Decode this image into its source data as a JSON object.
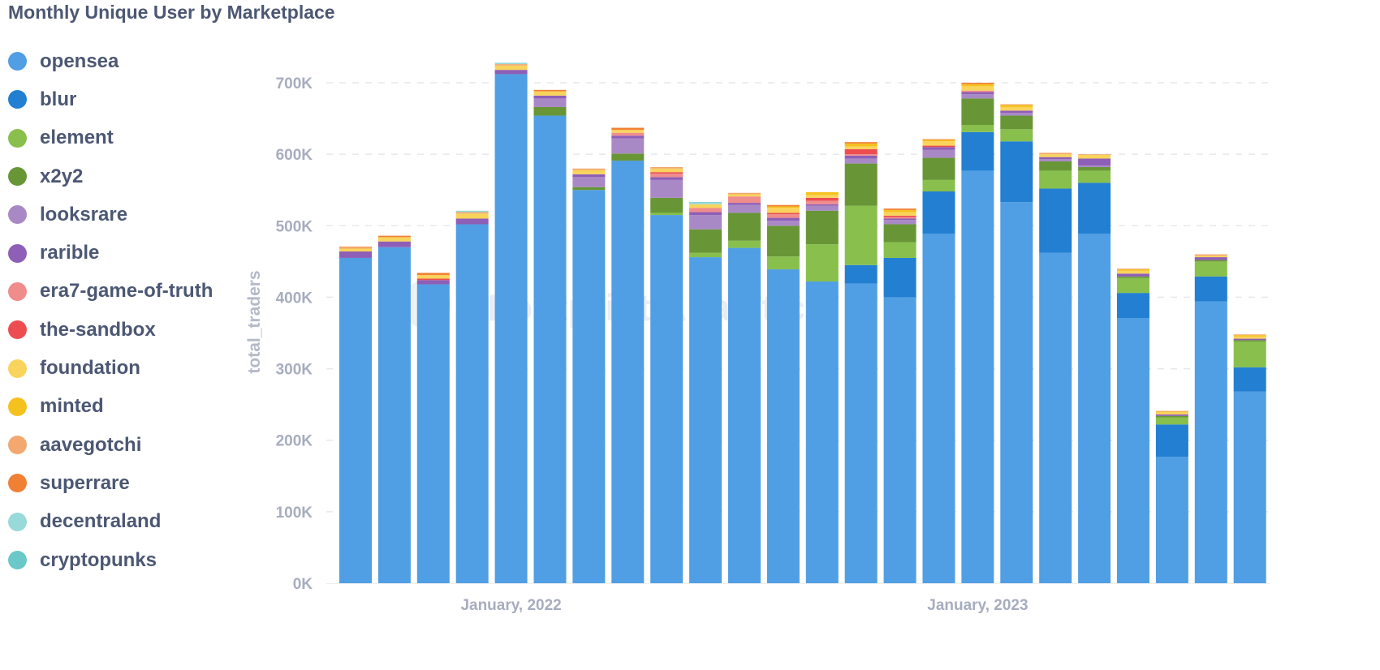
{
  "chart_data": {
    "type": "bar",
    "stacked": true,
    "title": "Monthly Unique User by Marketplace",
    "ylabel": "total_traders",
    "xlabel": "",
    "ylim": [
      0,
      740000
    ],
    "y_ticks": [
      "0K",
      "100K",
      "200K",
      "300K",
      "400K",
      "500K",
      "600K",
      "700K"
    ],
    "y_tick_values": [
      0,
      100000,
      200000,
      300000,
      400000,
      500000,
      600000,
      700000
    ],
    "x_tick_labels": [
      {
        "label": "January, 2022",
        "category": "2022-01"
      },
      {
        "label": "January, 2023",
        "category": "2023-01"
      }
    ],
    "grid": true,
    "legend_placement": "left",
    "watermark": "Footprint Analytics",
    "categories": [
      "2021-09",
      "2021-10",
      "2021-11",
      "2021-12",
      "2022-01",
      "2022-02",
      "2022-03",
      "2022-04",
      "2022-05",
      "2022-06",
      "2022-07",
      "2022-08",
      "2022-09",
      "2022-10",
      "2022-11",
      "2022-12",
      "2023-01",
      "2023-02",
      "2023-03",
      "2023-04",
      "2023-05",
      "2023-06",
      "2023-07",
      "2023-08"
    ],
    "series": [
      {
        "name": "opensea",
        "color": "#509ee3",
        "values": [
          455000,
          470000,
          418000,
          502000,
          712000,
          654000,
          550000,
          591000,
          515000,
          456000,
          469000,
          439000,
          422000,
          419000,
          400000,
          489000,
          577000,
          533000,
          462000,
          489000,
          371000,
          177000,
          394000,
          268000
        ]
      },
      {
        "name": "blur",
        "color": "#227fd2",
        "values": [
          0,
          0,
          0,
          0,
          0,
          0,
          0,
          0,
          0,
          0,
          0,
          0,
          0,
          26000,
          55000,
          59000,
          54000,
          85000,
          90000,
          71000,
          35000,
          45000,
          35000,
          34000
        ]
      },
      {
        "name": "element",
        "color": "#88bf4d",
        "values": [
          0,
          0,
          0,
          0,
          0,
          0,
          0,
          0,
          3000,
          6000,
          10000,
          18000,
          52000,
          83000,
          22000,
          16000,
          10000,
          17000,
          25000,
          17000,
          21000,
          10000,
          21000,
          36000
        ]
      },
      {
        "name": "x2y2",
        "color": "#689636",
        "values": [
          0,
          0,
          0,
          0,
          0,
          12000,
          4000,
          10000,
          21000,
          33000,
          39000,
          43000,
          47000,
          59000,
          25000,
          31000,
          37000,
          19000,
          13000,
          5000,
          2000,
          2000,
          2000,
          2000
        ]
      },
      {
        "name": "looksrare",
        "color": "#a989c5",
        "values": [
          0,
          0,
          0,
          0,
          0,
          12000,
          14000,
          21000,
          25000,
          20000,
          11000,
          7000,
          7000,
          7000,
          6000,
          11000,
          6000,
          4000,
          3000,
          2000,
          0,
          0,
          0,
          0
        ]
      },
      {
        "name": "rarible",
        "color": "#8e5fb6",
        "values": [
          9000,
          8000,
          6000,
          8000,
          6000,
          4000,
          4000,
          4000,
          4000,
          4000,
          3000,
          4000,
          2000,
          4000,
          2000,
          4000,
          3000,
          3000,
          3000,
          10000,
          4000,
          2000,
          4000,
          2000
        ]
      },
      {
        "name": "era7-game-of-truth",
        "color": "#ef8c8c",
        "values": [
          0,
          0,
          0,
          0,
          0,
          0,
          0,
          4000,
          5000,
          6000,
          9000,
          5000,
          5000,
          2000,
          2000,
          0,
          2000,
          0,
          0,
          0,
          0,
          0,
          0,
          0
        ]
      },
      {
        "name": "the-sandbox",
        "color": "#ed4d51",
        "values": [
          0,
          0,
          2000,
          0,
          0,
          0,
          0,
          0,
          2000,
          0,
          0,
          2000,
          4000,
          7000,
          2000,
          2000,
          0,
          0,
          0,
          0,
          0,
          0,
          0,
          0
        ]
      },
      {
        "name": "foundation",
        "color": "#f9d45c",
        "values": [
          4000,
          6000,
          5000,
          7000,
          6000,
          6000,
          6000,
          4000,
          5000,
          5000,
          3000,
          7000,
          4000,
          4000,
          5000,
          6000,
          6000,
          5000,
          4000,
          5000,
          4000,
          3000,
          2000,
          3000
        ]
      },
      {
        "name": "minted",
        "color": "#f5c11f",
        "values": [
          0,
          0,
          0,
          0,
          0,
          0,
          0,
          0,
          0,
          0,
          0,
          2000,
          4000,
          4000,
          3000,
          2000,
          3000,
          3000,
          0,
          0,
          2000,
          1000,
          0,
          2000
        ]
      },
      {
        "name": "aavegotchi",
        "color": "#f2a86f",
        "values": [
          3000,
          0,
          0,
          2000,
          2000,
          0,
          2000,
          0,
          2000,
          0,
          2000,
          0,
          0,
          0,
          0,
          0,
          0,
          1000,
          2000,
          1000,
          1000,
          1000,
          2000,
          1000
        ]
      },
      {
        "name": "superrare",
        "color": "#f08033",
        "values": [
          0,
          2000,
          3000,
          0,
          0,
          2000,
          0,
          3000,
          0,
          0,
          0,
          2000,
          0,
          2000,
          2000,
          1000,
          2000,
          0,
          0,
          0,
          0,
          0,
          0,
          0
        ]
      },
      {
        "name": "decentraland",
        "color": "#98d9d9",
        "values": [
          0,
          0,
          0,
          2000,
          2000,
          0,
          0,
          0,
          0,
          2000,
          0,
          0,
          0,
          0,
          0,
          0,
          0,
          0,
          0,
          0,
          0,
          0,
          0,
          0
        ]
      },
      {
        "name": "cryptopunks",
        "color": "#6ac8c8",
        "values": [
          0,
          0,
          0,
          0,
          0,
          0,
          0,
          0,
          0,
          1000,
          0,
          0,
          0,
          0,
          0,
          0,
          0,
          0,
          0,
          0,
          0,
          0,
          0,
          0
        ]
      }
    ]
  }
}
